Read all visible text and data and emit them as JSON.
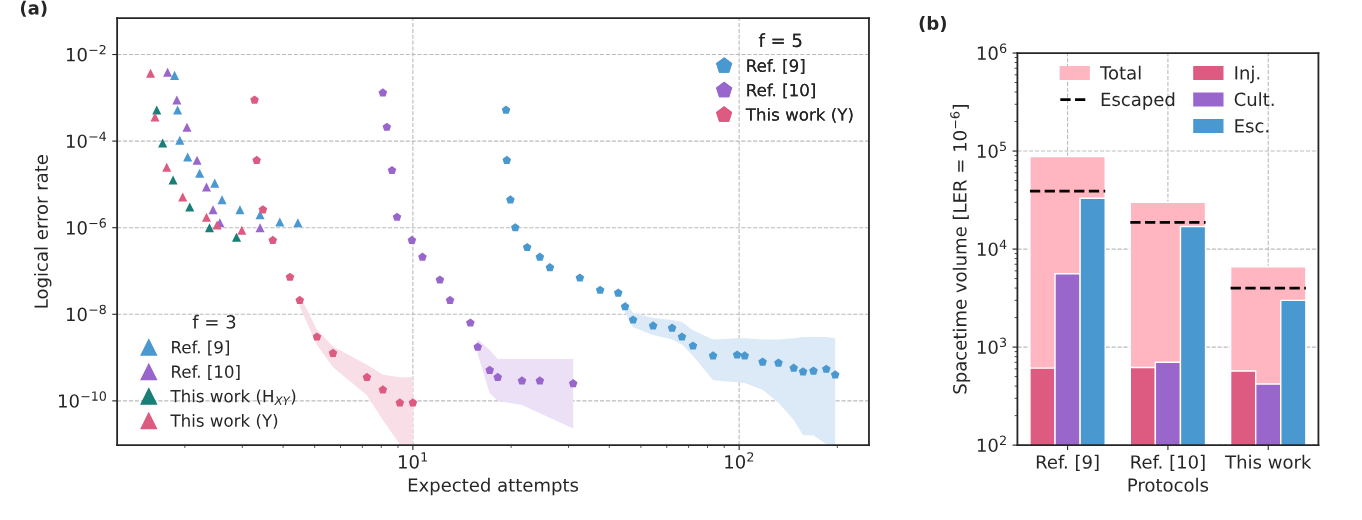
{
  "chart_data": [
    {
      "type": "scatter",
      "title": "(a)",
      "xlabel": "Expected attempts",
      "ylabel": "Logical error rate",
      "log": "xy",
      "xlim": [
        1.24,
        250
      ],
      "ylim": [
        9.5e-12,
        0.069
      ],
      "xticks": [
        {
          "value": 10,
          "label": "10$^{1}$"
        },
        {
          "value": 100,
          "label": "10$^{2}$"
        }
      ],
      "yticks": [
        {
          "value": 1e-10,
          "label": "10$^{−10}$"
        },
        {
          "value": 1e-08,
          "label": "10$^{−8}$"
        },
        {
          "value": 1e-06,
          "label": "10$^{−6}$"
        },
        {
          "value": 0.0001,
          "label": "10$^{−4}$"
        },
        {
          "value": 0.01,
          "label": "10$^{−2}$"
        }
      ],
      "grid": true,
      "legend": [
        "bottom left",
        "top right"
      ],
      "legend_title": [
        "f = 3",
        "f = 5"
      ],
      "series": [
        {
          "name": "Ref. [9]",
          "color": "#4a98d0",
          "marker": "triangle",
          "x": [
            1.86,
            1.9,
            1.93,
            2.04,
            2.22,
            2.47,
            2.6,
            2.95,
            3.4,
            3.91,
            4.44
          ],
          "values": [
            0.0033,
            0.00052,
            0.000105,
            4.3e-05,
            1.8e-05,
            1.07e-05,
            4.4e-06,
            2.6e-06,
            2e-06,
            1.35e-06,
            1.3e-06
          ]
        },
        {
          "name": "Ref. [10]",
          "color": "#9966cc",
          "marker": "triangle",
          "x": [
            1.77,
            1.89,
            2.03,
            2.18,
            2.33,
            2.44,
            2.56,
            3.4
          ],
          "values": [
            0.0039,
            0.00089,
            0.00021,
            3.6e-05,
            8.7e-06,
            2.6e-06,
            1.3e-06,
            1e-06
          ]
        },
        {
          "name": "This work (H$_{XY}$)",
          "color": "#187e77",
          "marker": "triangle",
          "x": [
            1.64,
            1.71,
            1.84,
            2.07,
            2.38,
            2.88
          ],
          "values": [
            0.00052,
            9e-05,
            1.26e-05,
            3e-06,
            1e-06,
            6e-07
          ]
        },
        {
          "name": "This work (Y)",
          "color": "#dd5a80",
          "marker": "triangle",
          "x": [
            1.57,
            1.62,
            1.76,
            1.97,
            2.33,
            2.51,
            2.99
          ],
          "values": [
            0.0037,
            0.00036,
            2.5e-05,
            5.1e-06,
            1.75e-06,
            1.15e-06,
            8.7e-07
          ]
        },
        {
          "name": "Ref. [9]",
          "color": "#4a98d0",
          "x": [
            19.3,
            19.4,
            19.9,
            20.6,
            22.4,
            24.5,
            26.3,
            32.5,
            37.5,
            42.6,
            44.7,
            47.3,
            54.5,
            62.3,
            66.8,
            72.2,
            83.2,
            98.6,
            104,
            118,
            132,
            147,
            157,
            169,
            185,
            197
          ],
          "values": [
            0.00052,
            3.6e-05,
            4.4e-06,
            1e-06,
            3.5e-07,
            2.1e-07,
            1.2e-07,
            6.9e-08,
            3.6e-08,
            3.1e-08,
            1.5e-08,
            7.4e-09,
            5.4e-09,
            4.8e-09,
            3e-09,
            1.86e-09,
            1.1e-09,
            1.15e-09,
            1.1e-09,
            7.9e-10,
            7.5e-10,
            5.7e-10,
            4.7e-10,
            4.9e-10,
            5.4e-10,
            4e-10
          ],
          "lower": [
            null,
            null,
            null,
            null,
            null,
            null,
            null,
            null,
            null,
            null,
            1.1e-08,
            5e-09,
            3.3e-09,
            2.6e-09,
            2e-09,
            1.1e-09,
            3e-10,
            2.7e-10,
            2.6e-10,
            1.8e-10,
            9e-11,
            3.6e-11,
            1.6e-11,
            1.6e-11,
            1e-11,
            1e-11
          ],
          "upper": [
            null,
            null,
            null,
            null,
            null,
            null,
            null,
            null,
            null,
            null,
            2.1e-08,
            1.07e-08,
            8.2e-09,
            7.4e-09,
            6.6e-09,
            4.3e-09,
            2.6e-09,
            2.8e-09,
            2.8e-09,
            2.6e-09,
            2.6e-09,
            2.8e-09,
            3e-09,
            3e-09,
            3e-09,
            2.8e-09
          ]
        },
        {
          "name": "Ref. [10]",
          "color": "#9966cc",
          "x": [
            8.09,
            8.32,
            8.63,
            8.94,
            9.93,
            10.7,
            12.1,
            13.0,
            15.0,
            15.8,
            17.2,
            18.2,
            21.6,
            24.5,
            31.0
          ],
          "values": [
            0.0013,
            0.00021,
            2.1e-05,
            1.75e-06,
            5.1e-07,
            2.1e-07,
            6.2e-08,
            2.1e-08,
            6.3e-09,
            1.75e-09,
            5.1e-10,
            3.5e-10,
            2.9e-10,
            2.9e-10,
            2.5e-10
          ],
          "lower": [
            null,
            null,
            null,
            null,
            null,
            null,
            null,
            null,
            null,
            1.2e-09,
            1.5e-10,
            1e-10,
            8e-11,
            5.2e-11,
            2.3e-11
          ],
          "upper": [
            null,
            null,
            null,
            null,
            null,
            null,
            null,
            null,
            null,
            2.6e-09,
            1.5e-09,
            9.3e-10,
            9.3e-10,
            9.3e-10,
            9.3e-10
          ]
        },
        {
          "name": "This work (Y)",
          "color": "#dd5a80",
          "x": [
            3.27,
            3.32,
            3.47,
            3.72,
            4.2,
            4.5,
            5.08,
            5.69,
            7.23,
            8.09,
            9.12,
            10.0
          ],
          "values": [
            0.00089,
            3.6e-05,
            2.6e-06,
            5.1e-07,
            7.2e-08,
            2.1e-08,
            3e-09,
            1.26e-09,
            3.5e-10,
            1.8e-10,
            9e-11,
            9e-11
          ],
          "lower": [
            null,
            null,
            null,
            null,
            null,
            1.5e-08,
            1.95e-09,
            6e-10,
            1.35e-10,
            3.6e-11,
            1e-11,
            1e-11
          ],
          "upper": [
            null,
            null,
            null,
            null,
            null,
            2.8e-08,
            4.4e-09,
            1.8e-09,
            6.8e-10,
            4e-10,
            3.5e-10,
            3.5e-10
          ]
        }
      ]
    },
    {
      "type": "bar",
      "title": "(b)",
      "xlabel": "Protocols",
      "ylabel": "Spacetime volume [LER = 10$^{−6}$]",
      "log": "y",
      "ylim": [
        100,
        1000000
      ],
      "yticks": [
        {
          "value": 100,
          "label": "10$^{2}$"
        },
        {
          "value": 1000,
          "label": "10$^{3}$"
        },
        {
          "value": 10000,
          "label": "10$^{4}$"
        },
        {
          "value": 100000,
          "label": "10$^{5}$"
        },
        {
          "value": 1000000,
          "label": "10$^{6}$"
        }
      ],
      "grid": true,
      "legend": "top",
      "categories": [
        "Ref. [9]",
        "Ref. [10]",
        "This work"
      ],
      "ref_lines": [
        {
          "axis": "y",
          "value": 39000,
          "label": "Escaped",
          "color": "#000000",
          "line_style": "dashed"
        },
        {
          "axis": "y",
          "value": 18700,
          "color": "#000000",
          "line_style": "dashed"
        },
        {
          "axis": "y",
          "value": 4000,
          "color": "#000000",
          "line_style": "dashed"
        }
      ],
      "series": [
        {
          "name": "Total",
          "color": "#ffb6c1",
          "values": [
            88000,
            30000,
            6600
          ]
        },
        {
          "name": "Inj.",
          "color": "#dd5a80",
          "values": [
            610,
            620,
            570
          ]
        },
        {
          "name": "Cult.",
          "color": "#9966cc",
          "values": [
            5600,
            700,
            420
          ]
        },
        {
          "name": "Esc.",
          "color": "#4a98d0",
          "values": [
            33000,
            17000,
            3000
          ]
        }
      ]
    }
  ]
}
